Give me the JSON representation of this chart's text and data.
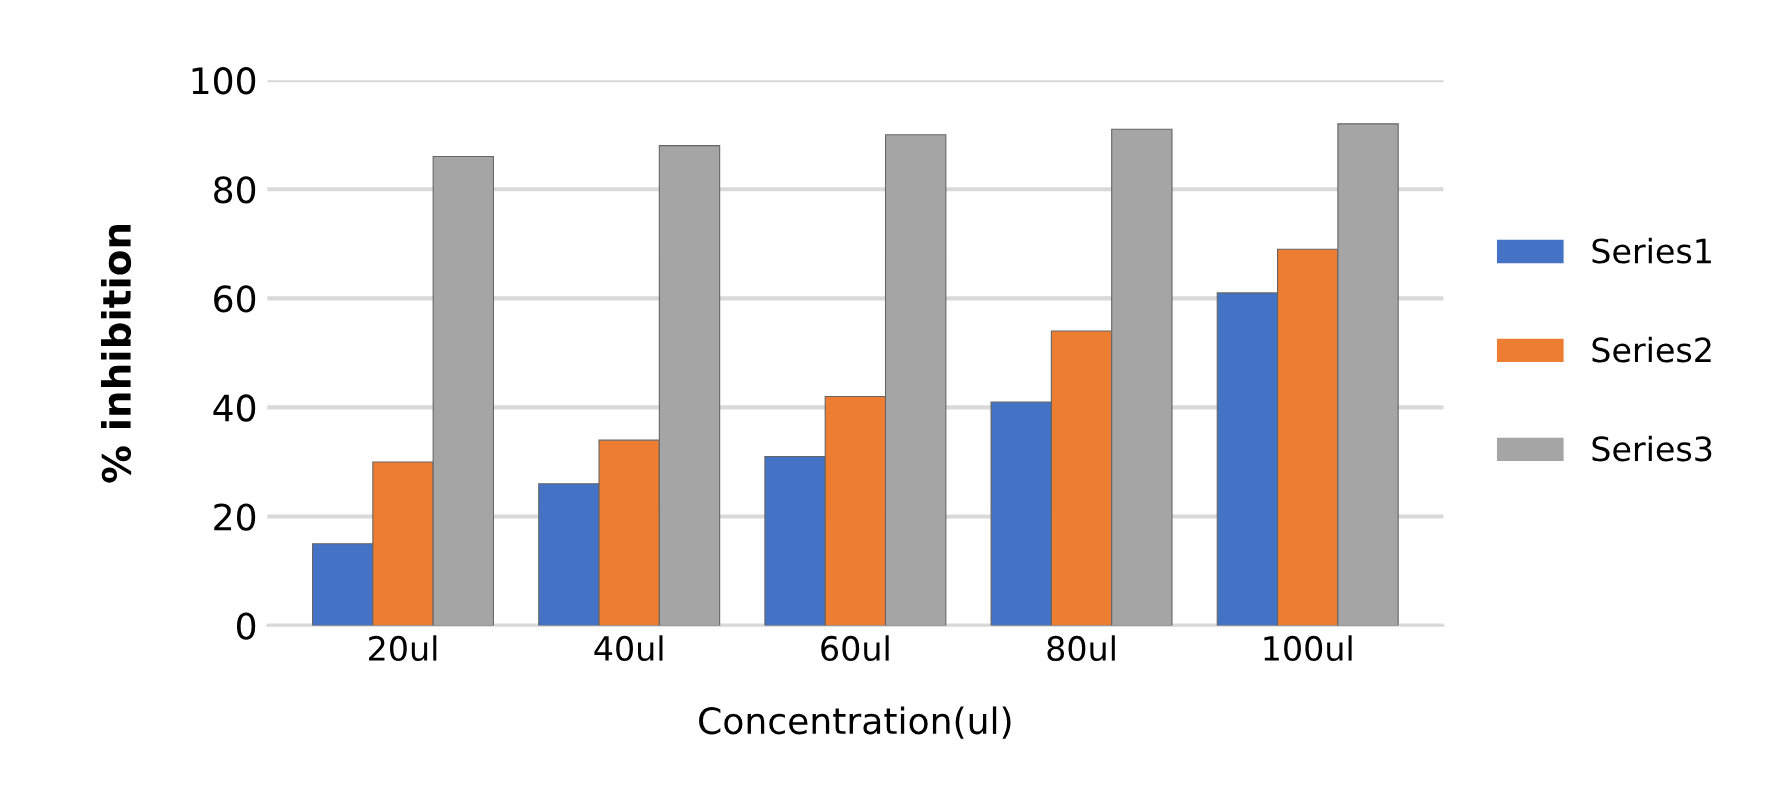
{
  "chart_data": {
    "type": "bar",
    "xlabel": "Concentration(ul)",
    "ylabel": "% inhibition",
    "categories": [
      "20ul",
      "40ul",
      "60ul",
      "80ul",
      "100ul"
    ],
    "series": [
      {
        "name": "Series1",
        "color": "#4472c4",
        "values": [
          15,
          26,
          31,
          41,
          61
        ]
      },
      {
        "name": "Series2",
        "color": "#ed7d31",
        "values": [
          30,
          34,
          42,
          54,
          69
        ]
      },
      {
        "name": "Series3",
        "color": "#a5a5a5",
        "values": [
          86,
          88,
          90,
          91,
          92
        ]
      }
    ],
    "ylim": [
      0,
      100
    ],
    "yticks": [
      0,
      20,
      40,
      60,
      80,
      100
    ],
    "grid": "y",
    "legend": "right"
  }
}
